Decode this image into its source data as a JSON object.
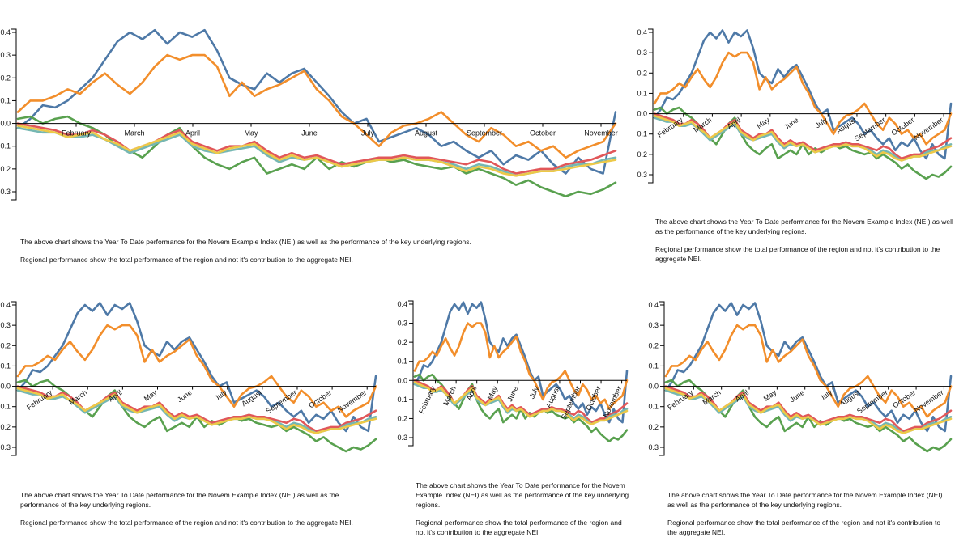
{
  "captions": {
    "line1": "The above chart shows the Year To Date performance for the Novem Example Index (NEI) as well as the performance of the key underlying regions.",
    "line2": "Regional performance show the total performance of the region and not it's contribution to the aggregate NEI."
  },
  "chart_data": {
    "type": "line",
    "title": "",
    "xlabel": "",
    "ylabel": "",
    "x_tick_labels": [
      "February",
      "March",
      "April",
      "May",
      "June",
      "July",
      "August",
      "September",
      "October",
      "November"
    ],
    "y_ticks": [
      0.4,
      0.3,
      0.2,
      0.1,
      0.0,
      -0.1,
      -0.2,
      -0.3
    ],
    "y_tick_labels": [
      "0.4",
      "0.3",
      "0.2",
      "0.1",
      "0.0",
      "0.1",
      "0.2",
      "0.3"
    ],
    "ylim": [
      -0.34,
      0.43
    ],
    "xlim": [
      0,
      48
    ],
    "grid": false,
    "x": [
      0,
      1,
      2,
      3,
      4,
      5,
      6,
      7,
      8,
      9,
      10,
      11,
      12,
      13,
      14,
      15,
      16,
      17,
      18,
      19,
      20,
      21,
      22,
      23,
      24,
      25,
      26,
      27,
      28,
      29,
      30,
      31,
      32,
      33,
      34,
      35,
      36,
      37,
      38,
      39,
      40,
      41,
      42,
      43,
      44,
      45,
      46,
      47,
      48
    ],
    "series": [
      {
        "color": "#4e79a7",
        "values": [
          -0.02,
          0.02,
          0.08,
          0.07,
          0.1,
          0.15,
          0.2,
          0.28,
          0.36,
          0.4,
          0.37,
          0.41,
          0.35,
          0.4,
          0.38,
          0.41,
          0.32,
          0.2,
          0.17,
          0.15,
          0.22,
          0.18,
          0.22,
          0.24,
          0.18,
          0.12,
          0.05,
          0.0,
          0.02,
          -0.08,
          -0.06,
          -0.04,
          -0.02,
          -0.05,
          -0.1,
          -0.08,
          -0.12,
          -0.15,
          -0.12,
          -0.18,
          -0.14,
          -0.16,
          -0.12,
          -0.18,
          -0.22,
          -0.15,
          -0.2,
          -0.22,
          0.05
        ]
      },
      {
        "color": "#f28e2b",
        "values": [
          0.05,
          0.1,
          0.1,
          0.12,
          0.15,
          0.13,
          0.18,
          0.22,
          0.17,
          0.13,
          0.18,
          0.25,
          0.3,
          0.28,
          0.3,
          0.3,
          0.25,
          0.12,
          0.18,
          0.12,
          0.15,
          0.17,
          0.2,
          0.23,
          0.15,
          0.1,
          0.03,
          0.0,
          -0.05,
          -0.1,
          -0.04,
          -0.01,
          0.0,
          0.02,
          0.05,
          0.0,
          -0.05,
          -0.08,
          -0.02,
          -0.05,
          -0.1,
          -0.08,
          -0.12,
          -0.1,
          -0.15,
          -0.12,
          -0.1,
          -0.08,
          0.0
        ]
      },
      {
        "color": "#59a14f",
        "values": [
          0.02,
          0.03,
          0.0,
          0.02,
          0.03,
          0.0,
          -0.02,
          -0.05,
          -0.1,
          -0.12,
          -0.15,
          -0.1,
          -0.05,
          -0.02,
          -0.1,
          -0.15,
          -0.18,
          -0.2,
          -0.17,
          -0.15,
          -0.22,
          -0.2,
          -0.18,
          -0.2,
          -0.15,
          -0.2,
          -0.17,
          -0.19,
          -0.17,
          -0.15,
          -0.17,
          -0.16,
          -0.18,
          -0.19,
          -0.2,
          -0.19,
          -0.22,
          -0.2,
          -0.22,
          -0.24,
          -0.27,
          -0.25,
          -0.28,
          -0.3,
          -0.32,
          -0.3,
          -0.31,
          -0.29,
          -0.26
        ]
      },
      {
        "color": "#e15759",
        "values": [
          0.0,
          -0.01,
          -0.02,
          -0.03,
          -0.05,
          -0.05,
          -0.03,
          -0.05,
          -0.08,
          -0.12,
          -0.1,
          -0.08,
          -0.05,
          -0.03,
          -0.08,
          -0.1,
          -0.12,
          -0.1,
          -0.1,
          -0.08,
          -0.12,
          -0.15,
          -0.13,
          -0.15,
          -0.14,
          -0.16,
          -0.18,
          -0.17,
          -0.16,
          -0.15,
          -0.15,
          -0.14,
          -0.15,
          -0.15,
          -0.16,
          -0.17,
          -0.18,
          -0.16,
          -0.17,
          -0.2,
          -0.22,
          -0.21,
          -0.2,
          -0.2,
          -0.18,
          -0.17,
          -0.16,
          -0.14,
          -0.12
        ]
      },
      {
        "color": "#76b7b2",
        "values": [
          -0.02,
          -0.03,
          -0.04,
          -0.04,
          -0.06,
          -0.06,
          -0.05,
          -0.07,
          -0.1,
          -0.13,
          -0.11,
          -0.09,
          -0.07,
          -0.05,
          -0.1,
          -0.12,
          -0.13,
          -0.12,
          -0.11,
          -0.1,
          -0.14,
          -0.17,
          -0.15,
          -0.16,
          -0.15,
          -0.17,
          -0.19,
          -0.18,
          -0.17,
          -0.16,
          -0.16,
          -0.15,
          -0.16,
          -0.16,
          -0.17,
          -0.18,
          -0.2,
          -0.18,
          -0.19,
          -0.21,
          -0.23,
          -0.22,
          -0.21,
          -0.21,
          -0.19,
          -0.18,
          -0.18,
          -0.16,
          -0.15
        ]
      },
      {
        "color": "#edc948",
        "values": [
          -0.01,
          -0.02,
          -0.03,
          -0.04,
          -0.06,
          -0.05,
          -0.04,
          -0.07,
          -0.09,
          -0.12,
          -0.1,
          -0.08,
          -0.06,
          -0.04,
          -0.09,
          -0.11,
          -0.13,
          -0.11,
          -0.1,
          -0.09,
          -0.13,
          -0.16,
          -0.14,
          -0.16,
          -0.15,
          -0.17,
          -0.19,
          -0.18,
          -0.17,
          -0.16,
          -0.16,
          -0.15,
          -0.16,
          -0.16,
          -0.17,
          -0.19,
          -0.21,
          -0.19,
          -0.2,
          -0.22,
          -0.23,
          -0.22,
          -0.21,
          -0.21,
          -0.2,
          -0.19,
          -0.18,
          -0.17,
          -0.16
        ]
      }
    ]
  }
}
